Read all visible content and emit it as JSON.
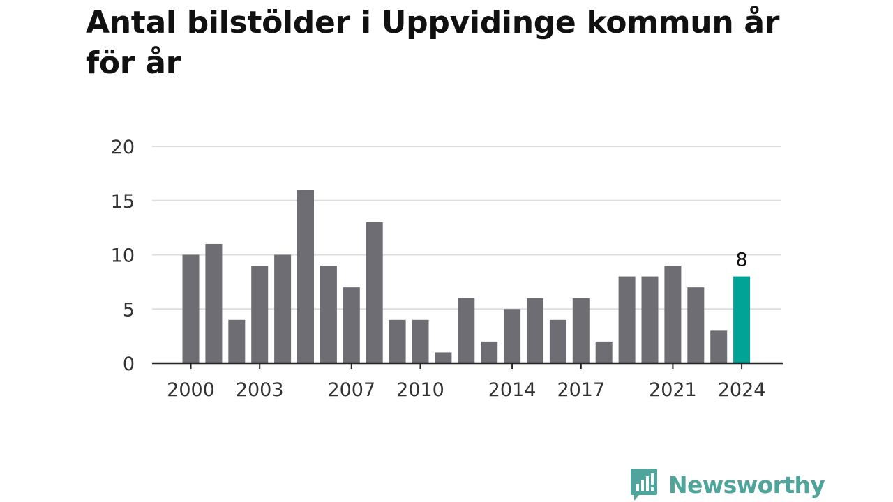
{
  "title": "Antal bilstölder i Uppvidinge kommun år för år",
  "brand": {
    "name": "Newsworthy",
    "icon": "newsworthy-logo-icon",
    "color": "#4fa49b"
  },
  "colors": {
    "bar": "#6e6d73",
    "highlight": "#00a396",
    "grid": "#dddddd",
    "axis": "#222222"
  },
  "chart_data": {
    "type": "bar",
    "title": "Antal bilstölder i Uppvidinge kommun år för år",
    "xlabel": "",
    "ylabel": "",
    "categories": [
      2000,
      2001,
      2002,
      2003,
      2004,
      2005,
      2006,
      2007,
      2008,
      2009,
      2010,
      2011,
      2012,
      2013,
      2014,
      2015,
      2016,
      2017,
      2018,
      2019,
      2020,
      2021,
      2022,
      2023,
      2024
    ],
    "values": [
      10,
      11,
      4,
      9,
      10,
      16,
      9,
      7,
      13,
      4,
      4,
      1,
      6,
      2,
      5,
      6,
      4,
      6,
      2,
      8,
      8,
      9,
      7,
      3,
      8
    ],
    "ylim": [
      0,
      20
    ],
    "yticks": [
      0,
      5,
      10,
      15,
      20
    ],
    "xtick_labels": [
      "2000",
      "2003",
      "2007",
      "2010",
      "2014",
      "2017",
      "2021",
      "2024"
    ],
    "highlight": {
      "category": 2024,
      "label": "8"
    },
    "grid": true,
    "legend": "none"
  }
}
